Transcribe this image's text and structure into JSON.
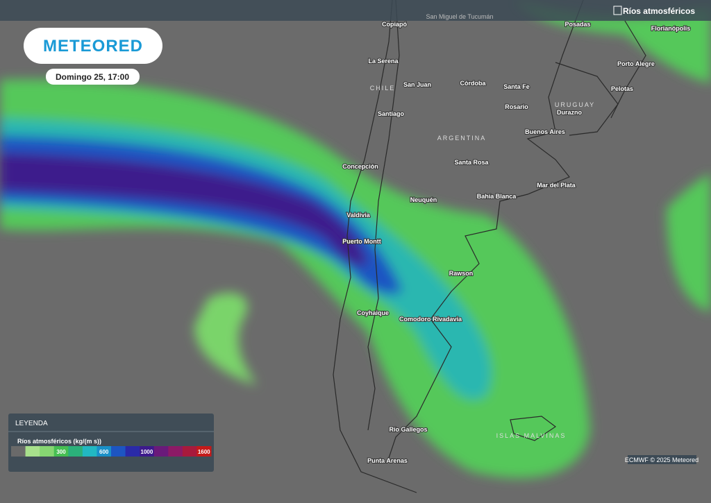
{
  "header": {
    "logo": "METEORED",
    "date": "Domingo 25, 17:00",
    "layer": "Ríos atmosféricos"
  },
  "map": {
    "labels": [
      "San Miguel de Tucumán",
      "Copiapó",
      "Posadas",
      "Florianópolis",
      "La Serena",
      "Porto Alegre",
      "CHILE",
      "San Juan",
      "Córdoba",
      "Santa Fe",
      "Pelotas",
      "URUGUAY",
      "Rosario",
      "Durazno",
      "Santiago",
      "Buenos Aires",
      "ARGENTINA",
      "Concepción",
      "Santa Rosa",
      "Mar del Plata",
      "Bahía Blanca",
      "Neuquén",
      "Valdivia",
      "Puerto Montt",
      "Rawson",
      "Coyhaique",
      "Comodoro Rivadavia",
      "Río Gallegos",
      "ISLAS MALVINAS",
      "Punta Arenas"
    ]
  },
  "legend": {
    "title": "LEYENDA",
    "subtitle": "Ríos atmosféricos (kg/(m s))",
    "ticks": [
      300,
      600,
      1000,
      1600
    ],
    "colors": [
      "#6a6a6a",
      "#a8e08c",
      "#86d672",
      "#46bf52",
      "#2bb07a",
      "#22b8c2",
      "#1a90c8",
      "#1d55c2",
      "#2a2aa8",
      "#3d1a8c",
      "#6a1a7a",
      "#8c1a66",
      "#a81a3c",
      "#c41a1a"
    ]
  },
  "credit": "ECMWF © 2025 Meteored"
}
